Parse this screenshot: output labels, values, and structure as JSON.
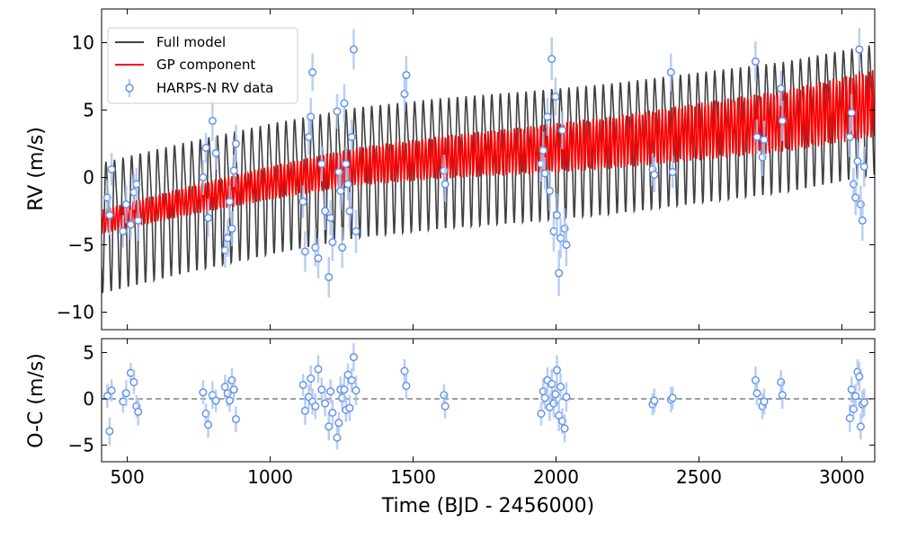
{
  "chart_data": {
    "type": "line",
    "xlabel": "Time (BJD - 2456000)",
    "xlim": [
      410,
      3115
    ],
    "x_ticks": [
      "500",
      "1000",
      "1500",
      "2000",
      "2500",
      "3000"
    ],
    "x_tick_values": [
      500,
      1000,
      1500,
      2000,
      2500,
      3000
    ],
    "grid": false,
    "legend_position": "top-left",
    "colors": {
      "full_model": "#404040",
      "gp_component": "#ff0000",
      "data": "#6495ed",
      "data_error": "#a9c2f0",
      "zero_line": "#808080"
    },
    "top_panel": {
      "ylabel": "RV (m/s)",
      "ylim": [
        -11.3,
        12.5
      ],
      "y_ticks": [
        "10",
        "5",
        "0",
        "−5",
        "−10"
      ],
      "y_tick_values": [
        10,
        5,
        0,
        -5,
        -10
      ],
      "legend": [
        "Full model",
        "GP component",
        "HARPS-N RV data"
      ],
      "model_period_days": 30,
      "model_amplitude_ms": 4.5,
      "gp_trend": {
        "x": [
          410,
          700,
          1000,
          1300,
          1600,
          1900,
          2200,
          2500,
          2800,
          3115
        ],
        "y": [
          -3.3,
          -1.8,
          -0.4,
          0.8,
          1.5,
          2.0,
          2.6,
          3.4,
          4.2,
          5.5
        ]
      },
      "data": {
        "x": [
          430,
          438,
          445,
          485,
          496,
          512,
          523,
          532,
          538,
          765,
          775,
          783,
          798,
          810,
          842,
          851,
          858,
          866,
          873,
          880,
          1115,
          1122,
          1135,
          1142,
          1148,
          1158,
          1168,
          1180,
          1192,
          1205,
          1211,
          1218,
          1234,
          1240,
          1246,
          1252,
          1259,
          1265,
          1272,
          1278,
          1285,
          1292,
          1300,
          1470,
          1476,
          1608,
          1612,
          1948,
          1955,
          1961,
          1970,
          1978,
          1985,
          1992,
          1998,
          2003,
          2010,
          2016,
          2022,
          2030,
          2036,
          2338,
          2344,
          2402,
          2408,
          2698,
          2703,
          2722,
          2728,
          2787,
          2792,
          3028,
          3034,
          3041,
          3048,
          3055,
          3061,
          3066,
          3072,
          3078
        ],
        "y": [
          -1.5,
          -2.8,
          0.6,
          -4.0,
          -2.0,
          -3.5,
          -1.1,
          -0.5,
          -3.2,
          0.0,
          2.2,
          -3.0,
          4.2,
          1.8,
          -5.4,
          -4.5,
          -1.8,
          -3.8,
          0.5,
          2.5,
          -1.8,
          -5.5,
          3.0,
          4.5,
          7.8,
          -5.2,
          -6.0,
          1.0,
          -2.5,
          -7.4,
          -3.0,
          -4.8,
          4.9,
          0.4,
          -1.0,
          -5.2,
          5.5,
          1.0,
          -0.5,
          -2.5,
          3.0,
          9.5,
          -4.0,
          6.2,
          7.6,
          0.5,
          -0.5,
          1.0,
          2.0,
          0.3,
          4.5,
          -1.0,
          8.8,
          -4.0,
          6.0,
          -2.8,
          -7.1,
          -4.5,
          3.5,
          -3.8,
          -5.0,
          0.6,
          0.2,
          7.8,
          0.4,
          8.6,
          3.0,
          1.5,
          2.8,
          6.6,
          4.2,
          3.0,
          4.8,
          -0.5,
          -1.5,
          1.2,
          9.5,
          -2.0,
          -3.2,
          0.8
        ],
        "err": [
          1.3,
          1.5,
          1.2,
          1.2,
          1.4,
          1.1,
          1.3,
          1.2,
          1.5,
          1.3,
          1.1,
          1.4,
          1.5,
          1.2,
          1.3,
          1.4,
          1.2,
          1.3,
          1.2,
          1.4,
          1.2,
          1.5,
          1.3,
          1.4,
          1.4,
          1.4,
          1.5,
          1.3,
          1.4,
          1.5,
          1.3,
          1.4,
          1.3,
          1.2,
          1.4,
          1.5,
          1.4,
          1.3,
          1.2,
          1.4,
          1.3,
          1.5,
          1.6,
          1.3,
          1.4,
          1.2,
          1.3,
          1.3,
          1.4,
          1.2,
          1.4,
          1.5,
          1.6,
          1.5,
          1.4,
          1.6,
          1.7,
          1.5,
          1.4,
          1.5,
          1.6,
          1.2,
          1.3,
          1.4,
          1.2,
          1.5,
          1.3,
          1.4,
          1.4,
          1.3,
          1.5,
          1.5,
          1.4,
          1.2,
          1.3,
          1.4,
          1.6,
          1.4,
          1.5,
          1.5
        ]
      }
    },
    "bottom_panel": {
      "ylabel": "O-C (m/s)",
      "ylim": [
        -6.8,
        6.5
      ],
      "y_ticks": [
        "5",
        "0",
        "−5"
      ],
      "y_tick_values": [
        5,
        0,
        -5
      ],
      "zero_line": 0,
      "data": {
        "x": [
          430,
          438,
          445,
          485,
          496,
          512,
          523,
          532,
          538,
          765,
          775,
          783,
          798,
          810,
          842,
          851,
          858,
          866,
          873,
          880,
          1115,
          1122,
          1135,
          1142,
          1148,
          1158,
          1168,
          1180,
          1192,
          1205,
          1211,
          1218,
          1234,
          1240,
          1246,
          1252,
          1259,
          1265,
          1272,
          1278,
          1285,
          1292,
          1300,
          1470,
          1476,
          1608,
          1612,
          1948,
          1955,
          1961,
          1970,
          1978,
          1985,
          1992,
          1998,
          2003,
          2010,
          2016,
          2022,
          2030,
          2036,
          2338,
          2344,
          2402,
          2408,
          2698,
          2703,
          2722,
          2728,
          2787,
          2792,
          3028,
          3034,
          3041,
          3048,
          3055,
          3061,
          3066,
          3072,
          3078
        ],
        "y": [
          0.3,
          -3.5,
          0.9,
          -0.3,
          0.6,
          2.8,
          1.8,
          -0.8,
          -1.4,
          0.7,
          -1.6,
          -2.8,
          0.4,
          -0.2,
          1.3,
          0.6,
          -0.2,
          2.0,
          1.0,
          -2.2,
          1.5,
          -1.3,
          0.2,
          2.2,
          -0.3,
          -0.8,
          3.2,
          1.0,
          -0.5,
          -3.0,
          0.8,
          -1.5,
          -4.2,
          -2.6,
          1.0,
          0.1,
          1.0,
          -1.2,
          2.6,
          -1.0,
          2.0,
          4.5,
          0.9,
          3.0,
          1.4,
          0.4,
          -0.8,
          -1.6,
          0.8,
          0.1,
          2.0,
          -0.9,
          1.6,
          -0.5,
          0.5,
          3.1,
          -1.8,
          1.3,
          -2.4,
          -3.2,
          0.2,
          -0.6,
          -0.2,
          -0.1,
          0.1,
          2.0,
          0.6,
          -0.8,
          -0.3,
          1.8,
          0.4,
          -2.1,
          1.0,
          -1.1,
          0.3,
          2.9,
          2.4,
          -3.0,
          -0.6,
          -0.4
        ],
        "err": [
          1.3,
          1.5,
          1.2,
          1.2,
          1.4,
          1.1,
          1.3,
          1.2,
          1.5,
          1.3,
          1.1,
          1.4,
          1.5,
          1.2,
          1.3,
          1.4,
          1.2,
          1.3,
          1.2,
          1.4,
          1.2,
          1.5,
          1.3,
          1.4,
          1.4,
          1.4,
          1.5,
          1.3,
          1.4,
          1.5,
          1.3,
          1.4,
          1.3,
          1.2,
          1.4,
          1.5,
          1.4,
          1.3,
          1.2,
          1.4,
          1.3,
          1.5,
          1.6,
          1.3,
          1.4,
          1.2,
          1.3,
          1.3,
          1.4,
          1.2,
          1.4,
          1.5,
          1.6,
          1.5,
          1.4,
          1.6,
          1.7,
          1.5,
          1.4,
          1.5,
          1.6,
          1.2,
          1.3,
          1.4,
          1.2,
          1.5,
          1.3,
          1.4,
          1.4,
          1.3,
          1.5,
          1.5,
          1.4,
          1.2,
          1.3,
          1.4,
          1.6,
          1.4,
          1.5,
          1.5
        ]
      }
    }
  }
}
